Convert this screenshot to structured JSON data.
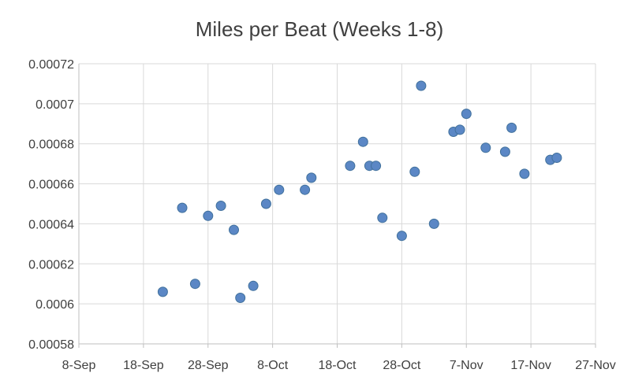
{
  "chart_data": {
    "type": "scatter",
    "title": "Miles per Beat (Weeks 1-8)",
    "xlabel": "",
    "ylabel": "",
    "x_axis": "date",
    "xlim": [
      "2016-09-08",
      "2016-11-27"
    ],
    "x_ticks": [
      "8-Sep",
      "18-Sep",
      "28-Sep",
      "8-Oct",
      "18-Oct",
      "28-Oct",
      "7-Nov",
      "17-Nov",
      "27-Nov"
    ],
    "ylim": [
      0.00058,
      0.00072
    ],
    "y_ticks": [
      "0.00058",
      "0.0006",
      "0.00062",
      "0.00064",
      "0.00066",
      "0.00068",
      "0.0007",
      "0.00072"
    ],
    "grid": true,
    "legend": "none",
    "marker_color": "#5b87c5",
    "series": [
      {
        "points": [
          {
            "x": "2016-09-21",
            "y": 0.000606
          },
          {
            "x": "2016-09-24",
            "y": 0.000648
          },
          {
            "x": "2016-09-26",
            "y": 0.00061
          },
          {
            "x": "2016-09-28",
            "y": 0.000644
          },
          {
            "x": "2016-09-30",
            "y": 0.000649
          },
          {
            "x": "2016-10-02",
            "y": 0.000637
          },
          {
            "x": "2016-10-03",
            "y": 0.000603
          },
          {
            "x": "2016-10-05",
            "y": 0.000609
          },
          {
            "x": "2016-10-07",
            "y": 0.00065
          },
          {
            "x": "2016-10-09",
            "y": 0.000657
          },
          {
            "x": "2016-10-13",
            "y": 0.000657
          },
          {
            "x": "2016-10-14",
            "y": 0.000663
          },
          {
            "x": "2016-10-20",
            "y": 0.000669
          },
          {
            "x": "2016-10-22",
            "y": 0.000681
          },
          {
            "x": "2016-10-23",
            "y": 0.000669
          },
          {
            "x": "2016-10-24",
            "y": 0.000669
          },
          {
            "x": "2016-10-25",
            "y": 0.000643
          },
          {
            "x": "2016-10-28",
            "y": 0.000634
          },
          {
            "x": "2016-10-30",
            "y": 0.000666
          },
          {
            "x": "2016-10-31",
            "y": 0.000709
          },
          {
            "x": "2016-11-02",
            "y": 0.00064
          },
          {
            "x": "2016-11-05",
            "y": 0.000686
          },
          {
            "x": "2016-11-06",
            "y": 0.000687
          },
          {
            "x": "2016-11-07",
            "y": 0.000695
          },
          {
            "x": "2016-11-10",
            "y": 0.000678
          },
          {
            "x": "2016-11-13",
            "y": 0.000676
          },
          {
            "x": "2016-11-14",
            "y": 0.000688
          },
          {
            "x": "2016-11-16",
            "y": 0.000665
          },
          {
            "x": "2016-11-20",
            "y": 0.000672
          },
          {
            "x": "2016-11-21",
            "y": 0.000673
          }
        ]
      }
    ]
  }
}
